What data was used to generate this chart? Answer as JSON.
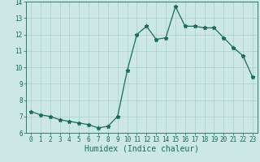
{
  "x": [
    0,
    1,
    2,
    3,
    4,
    5,
    6,
    7,
    8,
    9,
    10,
    11,
    12,
    13,
    14,
    15,
    16,
    17,
    18,
    19,
    20,
    21,
    22,
    23
  ],
  "y": [
    7.3,
    7.1,
    7.0,
    6.8,
    6.7,
    6.6,
    6.5,
    6.3,
    6.4,
    7.0,
    9.8,
    12.0,
    12.5,
    11.7,
    11.8,
    13.7,
    12.5,
    12.5,
    12.4,
    12.4,
    11.8,
    11.2,
    10.7,
    9.4
  ],
  "ylim": [
    6.0,
    14.0
  ],
  "xlim": [
    -0.5,
    23.5
  ],
  "yticks": [
    6,
    7,
    8,
    9,
    10,
    11,
    12,
    13,
    14
  ],
  "xticks": [
    0,
    1,
    2,
    3,
    4,
    5,
    6,
    7,
    8,
    9,
    10,
    11,
    12,
    13,
    14,
    15,
    16,
    17,
    18,
    19,
    20,
    21,
    22,
    23
  ],
  "xlabel": "Humidex (Indice chaleur)",
  "line_color": "#1a6b5a",
  "bg_color": "#cce8e4",
  "grid_color": "#aacfca",
  "marker": "*",
  "marker_size": 3.5,
  "linewidth": 0.9,
  "tick_fontsize": 5.5,
  "xlabel_fontsize": 7.0
}
